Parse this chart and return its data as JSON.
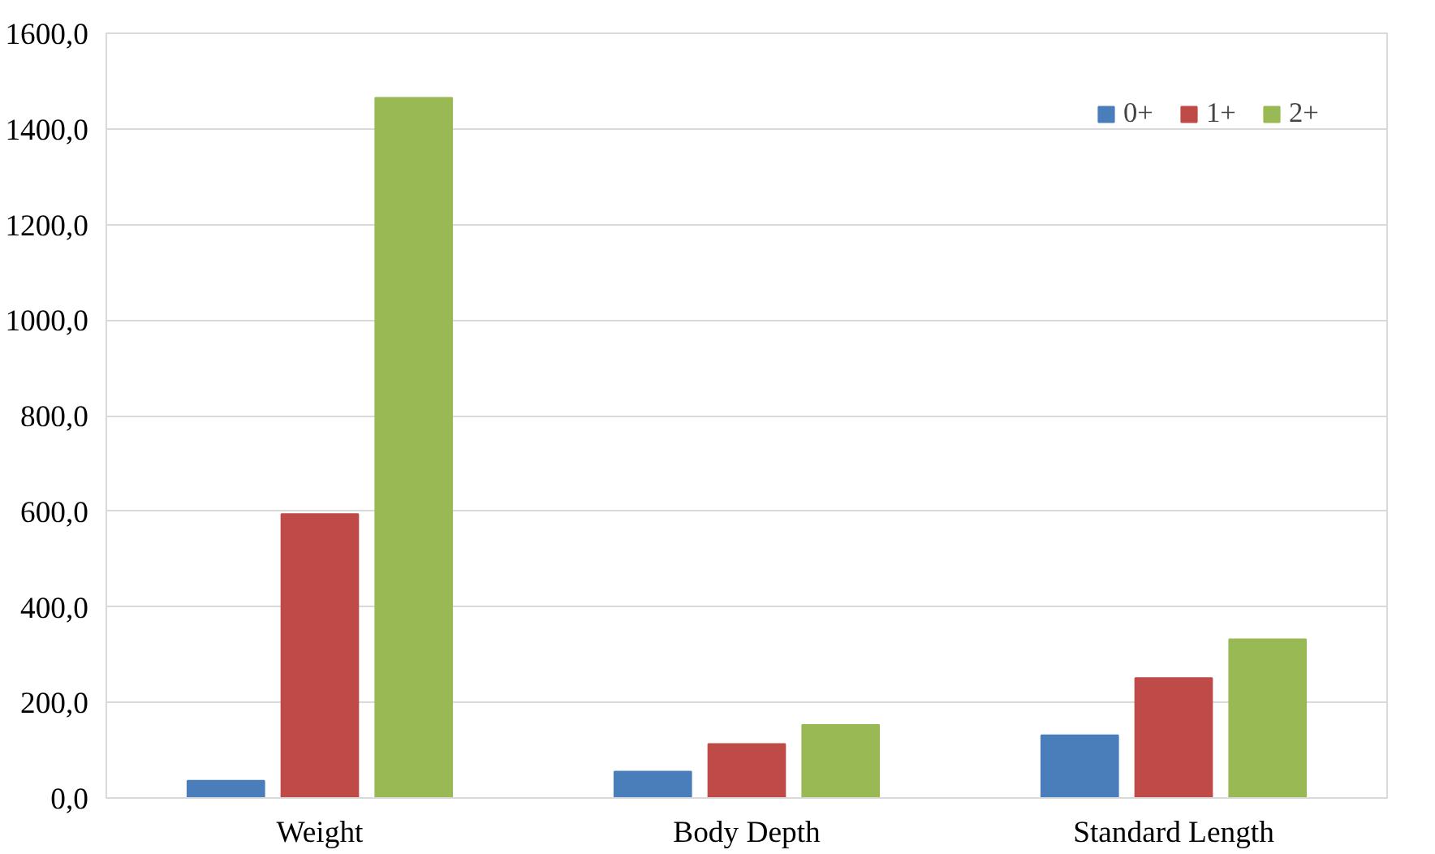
{
  "chart_data": {
    "type": "bar",
    "categories": [
      "Weight",
      "Body Depth",
      "Standard Length"
    ],
    "series": [
      {
        "name": "0+",
        "color": "#4a7ebb",
        "values": [
          36,
          55,
          131
        ]
      },
      {
        "name": "1+",
        "color": "#be4b48",
        "values": [
          594,
          113,
          251
        ]
      },
      {
        "name": "2+",
        "color": "#98b954",
        "values": [
          1465,
          153,
          332
        ]
      }
    ],
    "ylim": [
      0,
      1600
    ],
    "yticks": [
      {
        "value": 0,
        "label": "0,0"
      },
      {
        "value": 200,
        "label": "200,0"
      },
      {
        "value": 400,
        "label": "400,0"
      },
      {
        "value": 600,
        "label": "600,0"
      },
      {
        "value": 800,
        "label": "800,0"
      },
      {
        "value": 1000,
        "label": "1000,0"
      },
      {
        "value": 1200,
        "label": "1200,0"
      },
      {
        "value": 1400,
        "label": "1400,0"
      },
      {
        "value": 1600,
        "label": "1600,0"
      }
    ],
    "grid": "y",
    "legend": "top right"
  }
}
